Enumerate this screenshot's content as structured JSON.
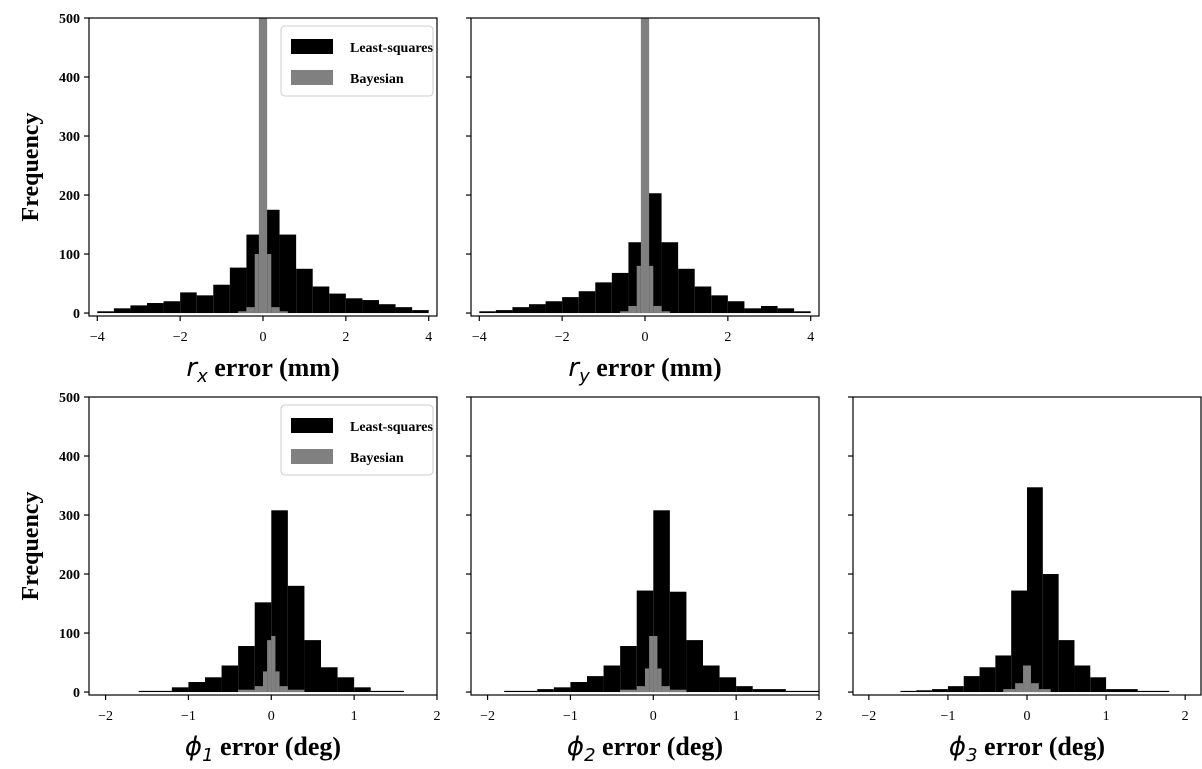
{
  "figure": {
    "colors": {
      "least_squares": "#000000",
      "bayesian": "#808080",
      "axis": "#000000",
      "legend_border": "#cccccc"
    }
  },
  "chart_data": [
    {
      "type": "bar",
      "id": "rx",
      "xlabel": "r_x error (mm)",
      "xlabel_parts": {
        "var": "r",
        "sub": "x",
        "rest": " error (mm)"
      },
      "ylabel": "Frequency",
      "xlim": [
        -4.2,
        4.2
      ],
      "ylim": [
        -5,
        500
      ],
      "xticks": [
        -4,
        -2,
        0,
        2,
        4
      ],
      "xtick_labels": [
        "−4",
        "−2",
        "0",
        "2",
        "4"
      ],
      "yticks": [
        0,
        100,
        200,
        300,
        400,
        500
      ],
      "ytick_labels": [
        "0",
        "100",
        "200",
        "300",
        "400",
        "500"
      ],
      "legend": {
        "position": "upper-right",
        "entries": [
          "Least-squares",
          "Bayesian"
        ]
      },
      "series": [
        {
          "name": "Least-squares",
          "bin_edges": [
            -4,
            -3.6,
            -3.2,
            -2.8,
            -2.4,
            -2,
            -1.6,
            -1.2,
            -0.8,
            -0.4,
            0,
            0.4,
            0.8,
            1.2,
            1.6,
            2,
            2.4,
            2.8,
            3.2,
            3.6,
            4
          ],
          "counts": [
            3,
            8,
            13,
            17,
            20,
            35,
            30,
            48,
            77,
            133,
            175,
            133,
            75,
            45,
            33,
            25,
            22,
            15,
            10,
            5
          ]
        },
        {
          "name": "Bayesian",
          "bin_edges": [
            -0.6,
            -0.4,
            -0.2,
            -0.1,
            0,
            0.1,
            0.2,
            0.4,
            0.6
          ],
          "counts": [
            3,
            10,
            100,
            500,
            500,
            100,
            10,
            3
          ]
        }
      ]
    },
    {
      "type": "bar",
      "id": "ry",
      "xlabel": "r_y error (mm)",
      "xlabel_parts": {
        "var": "r",
        "sub": "y",
        "rest": " error (mm)"
      },
      "xlim": [
        -4.2,
        4.2
      ],
      "ylim": [
        -5,
        500
      ],
      "xticks": [
        -4,
        -2,
        0,
        2,
        4
      ],
      "xtick_labels": [
        "−4",
        "−2",
        "0",
        "2",
        "4"
      ],
      "yticks": [
        0,
        100,
        200,
        300,
        400,
        500
      ],
      "series": [
        {
          "name": "Least-squares",
          "bin_edges": [
            -4,
            -3.6,
            -3.2,
            -2.8,
            -2.4,
            -2,
            -1.6,
            -1.2,
            -0.8,
            -0.4,
            0,
            0.4,
            0.8,
            1.2,
            1.6,
            2,
            2.4,
            2.8,
            3.2,
            3.6,
            4
          ],
          "counts": [
            3,
            5,
            10,
            15,
            20,
            27,
            37,
            52,
            68,
            120,
            203,
            120,
            75,
            45,
            30,
            20,
            8,
            12,
            8,
            3
          ]
        },
        {
          "name": "Bayesian",
          "bin_edges": [
            -0.6,
            -0.4,
            -0.2,
            -0.1,
            0,
            0.1,
            0.2,
            0.4,
            0.6
          ],
          "counts": [
            3,
            12,
            80,
            500,
            500,
            80,
            12,
            3
          ]
        }
      ]
    },
    {
      "type": "bar",
      "id": "phi1",
      "xlabel": "ϕ_1 error (deg)",
      "xlabel_parts": {
        "var": "ϕ",
        "sub": "1",
        "rest": " error (deg)"
      },
      "ylabel": "Frequency",
      "xlim": [
        -2.2,
        2.0
      ],
      "ylim": [
        -5,
        500
      ],
      "xticks": [
        -2,
        -1,
        0,
        1,
        2
      ],
      "xtick_labels": [
        "−2",
        "−1",
        "0",
        "1",
        "2"
      ],
      "yticks": [
        0,
        100,
        200,
        300,
        400,
        500
      ],
      "ytick_labels": [
        "0",
        "100",
        "200",
        "300",
        "400",
        "500"
      ],
      "legend": {
        "position": "upper-right",
        "entries": [
          "Least-squares",
          "Bayesian"
        ]
      },
      "series": [
        {
          "name": "Least-squares",
          "bin_edges": [
            -1.6,
            -1.2,
            -1.0,
            -0.8,
            -0.6,
            -0.4,
            -0.2,
            0,
            0.2,
            0.4,
            0.6,
            0.8,
            1.0,
            1.2,
            1.6
          ],
          "counts": [
            2,
            8,
            17,
            25,
            45,
            78,
            152,
            308,
            180,
            88,
            42,
            25,
            8,
            2
          ]
        },
        {
          "name": "Bayesian",
          "bin_edges": [
            -0.4,
            -0.2,
            -0.1,
            -0.05,
            0,
            0.05,
            0.1,
            0.2,
            0.4
          ],
          "counts": [
            4,
            10,
            35,
            88,
            95,
            35,
            10,
            4
          ]
        }
      ]
    },
    {
      "type": "bar",
      "id": "phi2",
      "xlabel": "ϕ_2 error (deg)",
      "xlabel_parts": {
        "var": "ϕ",
        "sub": "2",
        "rest": " error (deg)"
      },
      "xlim": [
        -2.2,
        2.0
      ],
      "ylim": [
        -5,
        500
      ],
      "xticks": [
        -2,
        -1,
        0,
        1,
        2
      ],
      "xtick_labels": [
        "−2",
        "−1",
        "0",
        "1",
        "2"
      ],
      "yticks": [
        0,
        100,
        200,
        300,
        400,
        500
      ],
      "series": [
        {
          "name": "Least-squares",
          "bin_edges": [
            -1.8,
            -1.4,
            -1.2,
            -1.0,
            -0.8,
            -0.6,
            -0.4,
            -0.2,
            0,
            0.2,
            0.4,
            0.6,
            0.8,
            1.0,
            1.2,
            1.6,
            2.0
          ],
          "counts": [
            2,
            5,
            8,
            17,
            27,
            45,
            78,
            172,
            308,
            170,
            88,
            45,
            25,
            10,
            5,
            2
          ]
        },
        {
          "name": "Bayesian",
          "bin_edges": [
            -0.4,
            -0.2,
            -0.1,
            -0.05,
            0,
            0.05,
            0.1,
            0.2,
            0.4
          ],
          "counts": [
            4,
            10,
            40,
            95,
            95,
            40,
            10,
            4
          ]
        }
      ]
    },
    {
      "type": "bar",
      "id": "phi3",
      "xlabel": "ϕ_3 error (deg)",
      "xlabel_parts": {
        "var": "ϕ",
        "sub": "3",
        "rest": " error (deg)"
      },
      "xlim": [
        -2.2,
        2.2
      ],
      "ylim": [
        -5,
        500
      ],
      "xticks": [
        -2,
        -1,
        0,
        1,
        2
      ],
      "xtick_labels": [
        "−2",
        "−1",
        "0",
        "1",
        "2"
      ],
      "yticks": [
        0,
        100,
        200,
        300,
        400,
        500
      ],
      "series": [
        {
          "name": "Least-squares",
          "bin_edges": [
            -1.6,
            -1.4,
            -1.2,
            -1.0,
            -0.8,
            -0.6,
            -0.4,
            -0.2,
            0,
            0.2,
            0.4,
            0.6,
            0.8,
            1.0,
            1.4,
            1.8
          ],
          "counts": [
            2,
            3,
            5,
            10,
            27,
            42,
            62,
            172,
            347,
            200,
            88,
            45,
            25,
            5,
            2
          ]
        },
        {
          "name": "Bayesian",
          "bin_edges": [
            -0.3,
            -0.15,
            -0.05,
            0,
            0.05,
            0.15,
            0.3
          ],
          "counts": [
            5,
            15,
            45,
            45,
            15,
            5
          ]
        }
      ]
    }
  ]
}
